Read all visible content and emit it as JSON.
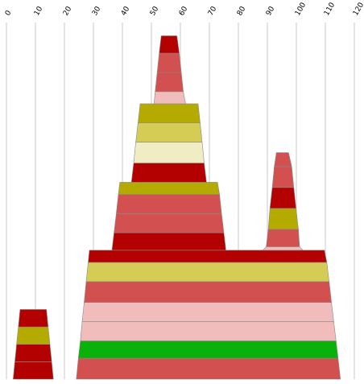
{
  "chart_data": {
    "type": "stacked-trapezoid",
    "title": "",
    "xlabel": "",
    "ylabel": "",
    "xlim": [
      0,
      120
    ],
    "xticks": [
      "0",
      "10",
      "20",
      "30",
      "40",
      "50",
      "60",
      "70",
      "80",
      "90",
      "100",
      "110",
      "120"
    ],
    "grid": "vertical",
    "palette": {
      "dark-red": "#b30000",
      "red": "#d35050",
      "pink": "#f0bcbc",
      "olive": "#b4aa00",
      "light-olive": "#d4cc55",
      "cream": "#f0ecc4",
      "green": "#0bb10b"
    },
    "bands": [
      {
        "y0": 0.0,
        "y1": 5.0,
        "left0": 2.3,
        "right0": 16.2,
        "left1": 2.9,
        "right1": 15.6,
        "color": "dark-red"
      },
      {
        "y0": 5.0,
        "y1": 10.0,
        "left0": 2.9,
        "right0": 15.6,
        "left1": 3.5,
        "right1": 15.0,
        "color": "dark-red"
      },
      {
        "y0": 10.0,
        "y1": 15.0,
        "left0": 3.5,
        "right0": 15.0,
        "left1": 4.1,
        "right1": 14.4,
        "color": "olive"
      },
      {
        "y0": 15.0,
        "y1": 20.0,
        "left0": 4.1,
        "right0": 14.4,
        "left1": 4.7,
        "right1": 13.8,
        "color": "dark-red"
      },
      {
        "y0": 0.0,
        "y1": 6.0,
        "left0": 24.1,
        "right0": 115.2,
        "left1": 24.8,
        "right1": 114.4,
        "color": "red"
      },
      {
        "y0": 6.0,
        "y1": 11.0,
        "left0": 24.8,
        "right0": 114.4,
        "left1": 25.5,
        "right1": 113.7,
        "color": "green"
      },
      {
        "y0": 11.0,
        "y1": 16.5,
        "left0": 25.5,
        "right0": 113.7,
        "left1": 26.1,
        "right1": 112.9,
        "color": "pink"
      },
      {
        "y0": 16.5,
        "y1": 22.0,
        "left0": 26.1,
        "right0": 112.9,
        "left1": 26.8,
        "right1": 112.1,
        "color": "pink"
      },
      {
        "y0": 22.0,
        "y1": 28.0,
        "left0": 26.8,
        "right0": 112.1,
        "left1": 27.5,
        "right1": 111.3,
        "color": "red"
      },
      {
        "y0": 28.0,
        "y1": 33.5,
        "left0": 27.5,
        "right0": 111.3,
        "left1": 28.2,
        "right1": 110.5,
        "color": "light-olive"
      },
      {
        "y0": 33.5,
        "y1": 37.0,
        "left0": 28.2,
        "right0": 110.5,
        "left1": 28.6,
        "right1": 109.7,
        "color": "dark-red"
      },
      {
        "y0": 37.0,
        "y1": 42.0,
        "left0": 36.4,
        "right0": 75.7,
        "left1": 37.1,
        "right1": 75.0,
        "color": "dark-red"
      },
      {
        "y0": 42.0,
        "y1": 47.5,
        "left0": 37.1,
        "right0": 75.0,
        "left1": 37.9,
        "right1": 74.2,
        "color": "red"
      },
      {
        "y0": 47.5,
        "y1": 53.0,
        "left0": 37.9,
        "right0": 74.2,
        "left1": 38.6,
        "right1": 73.5,
        "color": "red"
      },
      {
        "y0": 53.0,
        "y1": 56.5,
        "left0": 38.6,
        "right0": 73.5,
        "left1": 39.1,
        "right1": 72.8,
        "color": "olive"
      },
      {
        "y0": 37.0,
        "y1": 38.0,
        "left0": 88.4,
        "right0": 102.3,
        "left1": 89.6,
        "right1": 101.1,
        "color": "pink"
      },
      {
        "y0": 38.0,
        "y1": 43.0,
        "left0": 89.6,
        "right0": 101.1,
        "left1": 90.3,
        "right1": 100.7,
        "color": "red"
      },
      {
        "y0": 43.0,
        "y1": 49.0,
        "left0": 90.3,
        "right0": 100.7,
        "left1": 90.9,
        "right1": 99.9,
        "color": "olive"
      },
      {
        "y0": 49.0,
        "y1": 55.0,
        "left0": 90.9,
        "right0": 99.9,
        "left1": 91.7,
        "right1": 99.1,
        "color": "dark-red"
      },
      {
        "y0": 55.0,
        "y1": 61.0,
        "left0": 91.7,
        "right0": 99.1,
        "left1": 92.4,
        "right1": 98.4,
        "color": "red"
      },
      {
        "y0": 61.0,
        "y1": 65.0,
        "left0": 92.4,
        "right0": 98.4,
        "left1": 93.1,
        "right1": 97.3,
        "color": "red"
      },
      {
        "y0": 56.5,
        "y1": 62.0,
        "left0": 43.1,
        "right0": 69.0,
        "left1": 43.9,
        "right1": 68.2,
        "color": "dark-red"
      },
      {
        "y0": 62.0,
        "y1": 68.0,
        "left0": 43.9,
        "right0": 68.2,
        "left1": 44.6,
        "right1": 67.5,
        "color": "cream"
      },
      {
        "y0": 68.0,
        "y1": 73.5,
        "left0": 44.6,
        "right0": 67.5,
        "left1": 45.4,
        "right1": 66.8,
        "color": "light-olive"
      },
      {
        "y0": 73.5,
        "y1": 79.0,
        "left0": 45.4,
        "right0": 66.8,
        "left1": 46.1,
        "right1": 66.1,
        "color": "olive"
      },
      {
        "y0": 79.0,
        "y1": 82.5,
        "left0": 50.9,
        "right0": 61.8,
        "left1": 51.3,
        "right1": 61.0,
        "color": "pink"
      },
      {
        "y0": 82.5,
        "y1": 88.0,
        "left0": 51.3,
        "right0": 61.0,
        "left1": 52.0,
        "right1": 60.3,
        "color": "red"
      },
      {
        "y0": 88.0,
        "y1": 93.5,
        "left0": 52.0,
        "right0": 60.3,
        "left1": 52.7,
        "right1": 59.6,
        "color": "red"
      },
      {
        "y0": 93.5,
        "y1": 98.5,
        "left0": 52.7,
        "right0": 59.6,
        "left1": 53.4,
        "right1": 58.8,
        "color": "dark-red"
      }
    ]
  }
}
